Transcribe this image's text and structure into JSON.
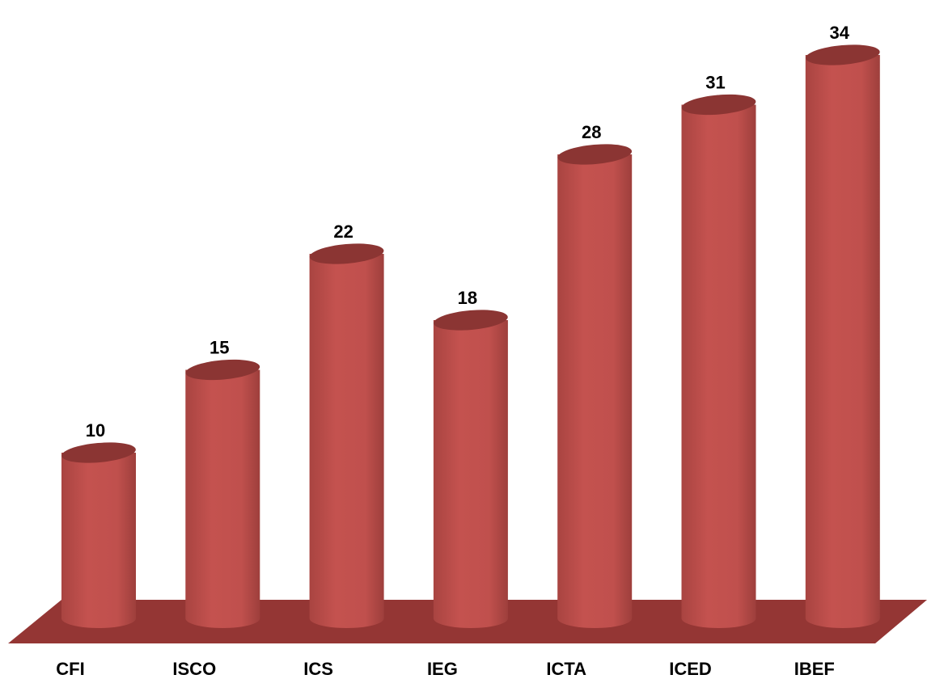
{
  "chart_data": {
    "type": "bar",
    "style": "3d-cylinder",
    "categories": [
      "CFI",
      "ISCO",
      "ICS",
      "IEG",
      "ICTA",
      "ICED",
      "IBEF"
    ],
    "values": [
      10,
      15,
      22,
      18,
      28,
      31,
      34
    ],
    "title": "",
    "xlabel": "",
    "ylabel": "",
    "ylim": [
      0,
      34
    ],
    "grid": false,
    "legend": "none",
    "data_labels": true
  },
  "colors": {
    "bar_body": "#c0504d",
    "bar_top": "#8b3533",
    "floor": "#943634"
  }
}
